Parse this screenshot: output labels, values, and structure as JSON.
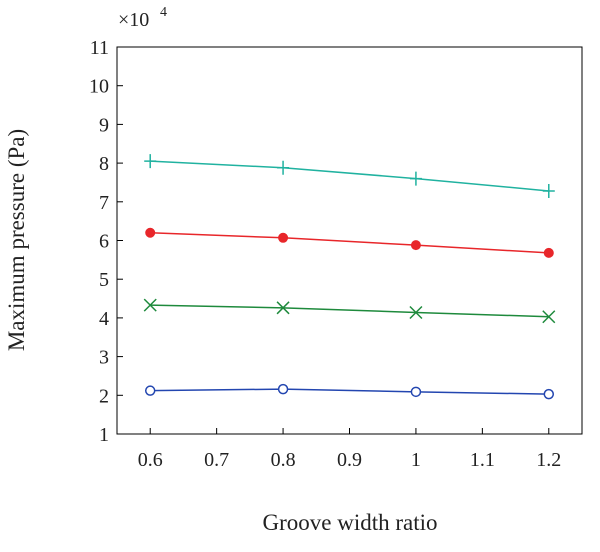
{
  "chart_data": {
    "type": "line",
    "xlabel": "Groove width ratio",
    "ylabel": "Maximum pressure (Pa)",
    "y_multiplier": {
      "base": "×10",
      "exponent": "4"
    },
    "x": [
      0.6,
      0.8,
      1.0,
      1.2
    ],
    "xlim": [
      0.55,
      1.25
    ],
    "ylim": [
      1,
      11
    ],
    "x_ticks": [
      0.6,
      0.7,
      0.8,
      0.9,
      1.0,
      1.1,
      1.2
    ],
    "x_tick_labels": [
      "0.6",
      "0.7",
      "0.8",
      "0.9",
      "1",
      "1.1",
      "1.2"
    ],
    "y_ticks": [
      1,
      2,
      3,
      4,
      5,
      6,
      7,
      8,
      9,
      10,
      11
    ],
    "y_tick_labels": [
      "1",
      "2",
      "3",
      "4",
      "5",
      "6",
      "7",
      "8",
      "9",
      "10",
      "11"
    ],
    "grid": false,
    "series": [
      {
        "values": [
          8.05,
          7.88,
          7.6,
          7.28
        ],
        "color": "#20b2a0",
        "marker": "plus"
      },
      {
        "values": [
          6.2,
          6.07,
          5.88,
          5.68
        ],
        "color": "#e8262a",
        "marker": "filled-circle"
      },
      {
        "values": [
          4.33,
          4.26,
          4.14,
          4.03
        ],
        "color": "#1e8a3c",
        "marker": "cross"
      },
      {
        "values": [
          2.12,
          2.16,
          2.09,
          2.03
        ],
        "color": "#2346b0",
        "marker": "open-circle"
      }
    ]
  }
}
